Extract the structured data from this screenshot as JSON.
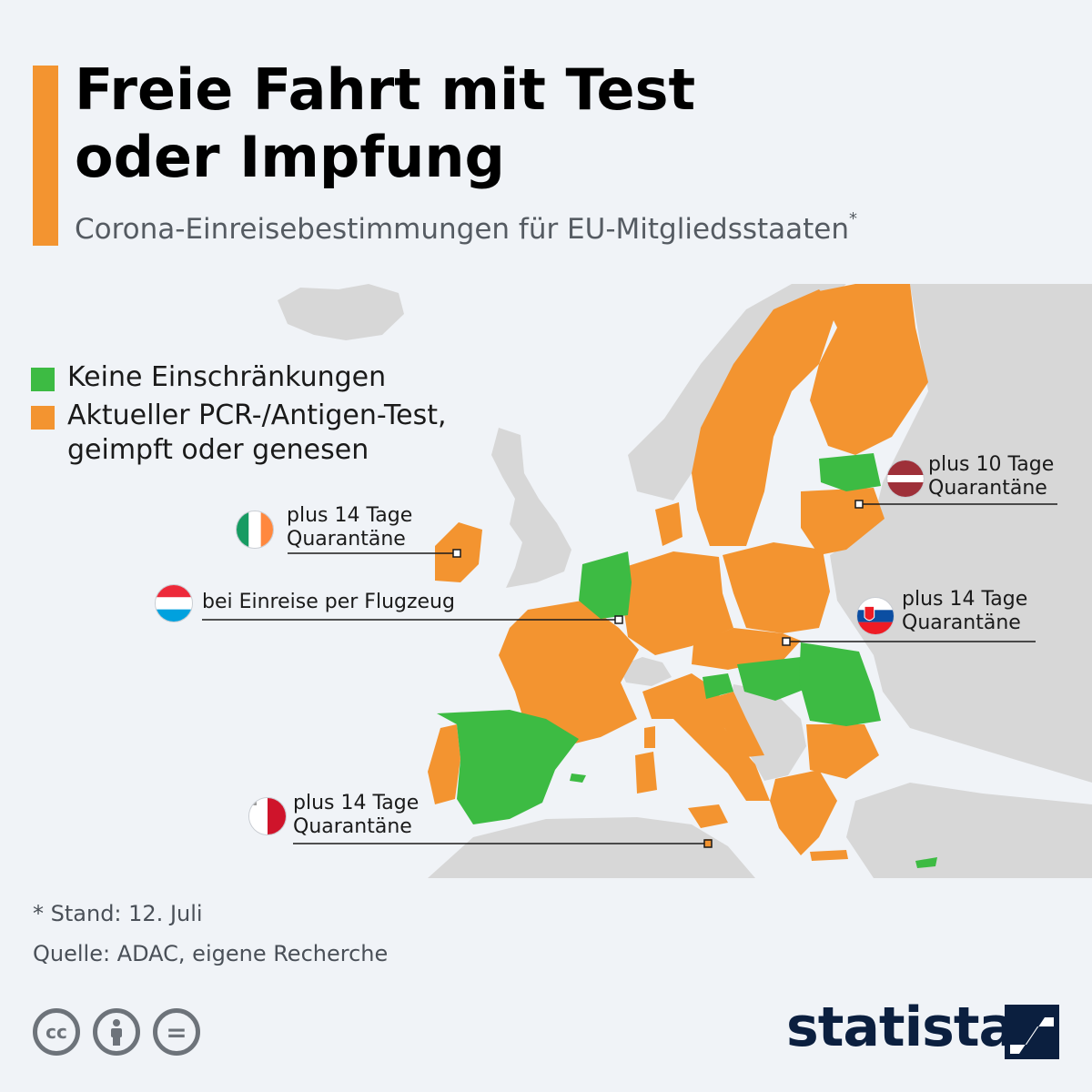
{
  "title": {
    "line1": "Freie Fahrt mit Test",
    "line2": "oder Impfung"
  },
  "subtitle": "Corona-Einreisebestimmungen für EU-Mitgliedsstaaten",
  "subtitle_marker": "*",
  "colors": {
    "accent": "#f39430",
    "green": "#3dbb43",
    "orange": "#f39430",
    "nonEU": "#d7d7d7",
    "sea": "#f0f3f7",
    "brand": "#0b1f3f"
  },
  "legend": [
    {
      "label": "Keine Einschränkungen",
      "color": "#3dbb43"
    },
    {
      "label": "Aktueller PCR-/Antigen-Test,\ngeimpft oder genesen",
      "color": "#f39430"
    }
  ],
  "annotations": {
    "ireland": {
      "text": "plus 14 Tage\nQuarantäne",
      "flag": "ireland-flag-icon"
    },
    "luxembourg": {
      "text": "bei Einreise per Flugzeug",
      "flag": "luxembourg-flag-icon"
    },
    "latvia": {
      "text": "plus 10 Tage\nQuarantäne",
      "flag": "latvia-flag-icon"
    },
    "slovakia": {
      "text": "plus 14 Tage\nQuarantäne",
      "flag": "slovakia-flag-icon"
    },
    "malta": {
      "text": "plus 14 Tage\nQuarantäne",
      "flag": "malta-flag-icon"
    }
  },
  "countries": {
    "no_restrictions": [
      "Spanien",
      "Niederlande",
      "Belgien",
      "Estland",
      "Ungarn",
      "Rumänien",
      "Slowenien",
      "Zypern"
    ],
    "test_or_vaccine": [
      "Portugal",
      "Frankreich",
      "Irland",
      "Deutschland",
      "Dänemark",
      "Schweden",
      "Finnland",
      "Polen",
      "Tschechien",
      "Slowakei",
      "Österreich",
      "Italien",
      "Kroatien",
      "Bulgarien",
      "Griechenland",
      "Lettland",
      "Litauen",
      "Luxemburg",
      "Malta"
    ]
  },
  "footnote": "* Stand: 12. Juli",
  "source": "Quelle: ADAC, eigene Recherche",
  "license_icons": [
    "cc-icon",
    "by-icon",
    "nd-icon"
  ],
  "license_labels": [
    "cc",
    "=",
    ""
  ],
  "brand": "statista"
}
